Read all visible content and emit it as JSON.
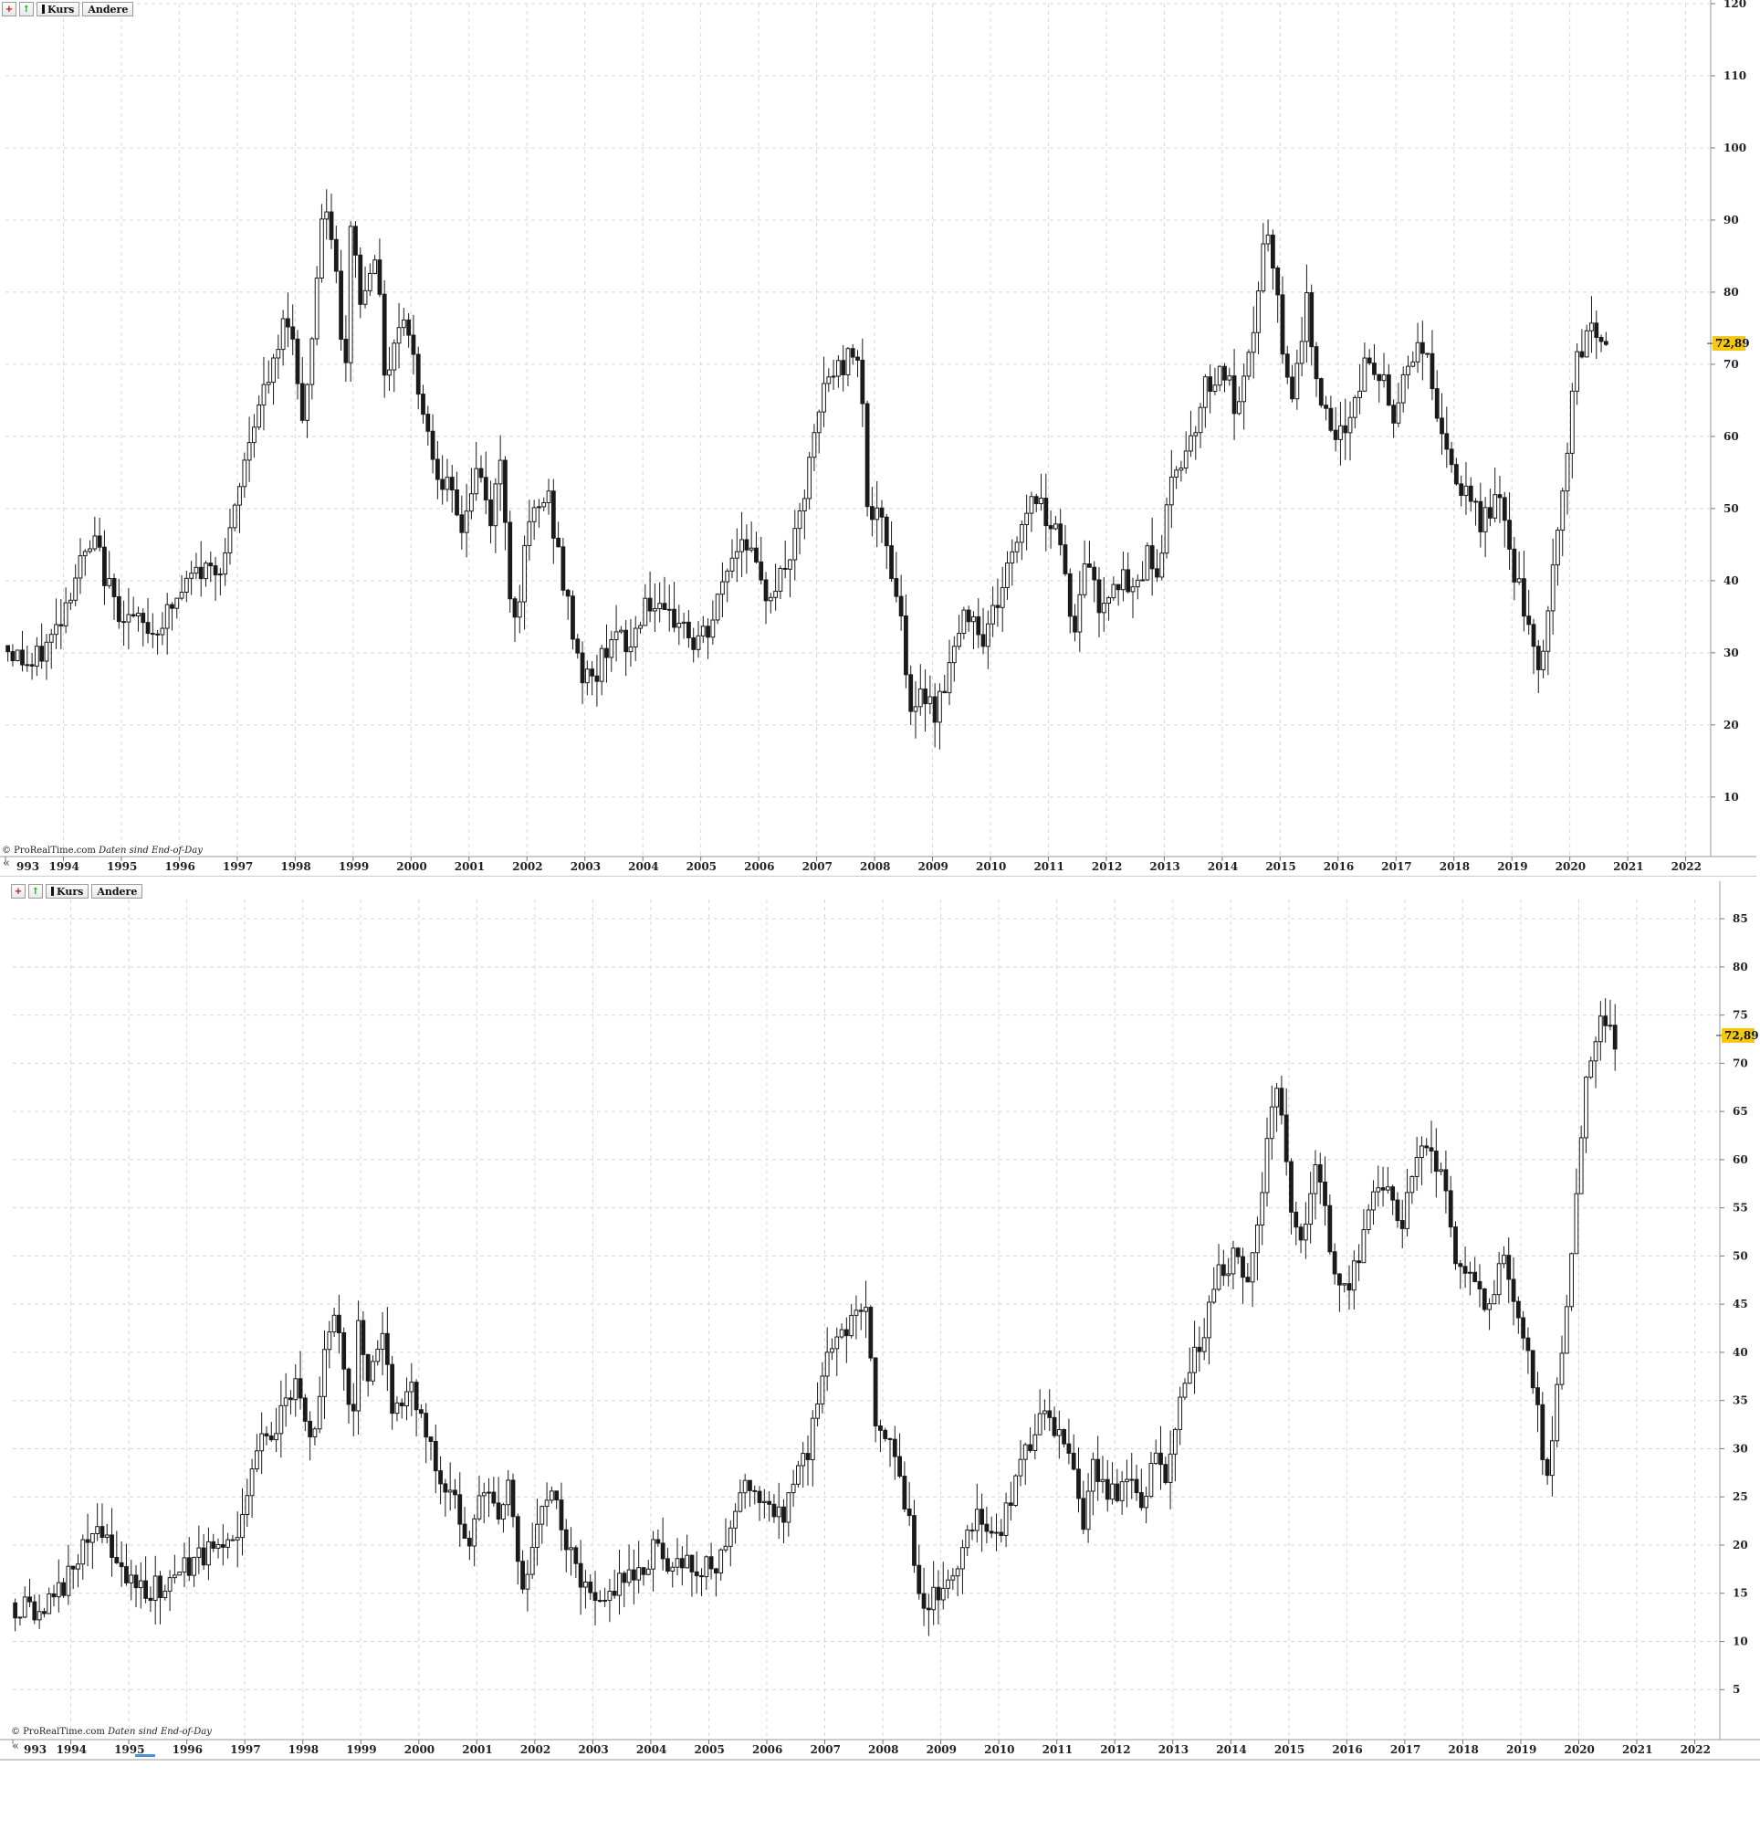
{
  "toolbar": {
    "kurs_label": "Kurs",
    "andere_label": "Andere",
    "add_icon": "plus-icon",
    "up_icon": "arrow-up-icon"
  },
  "attribution": {
    "source": "© ProRealTime.com",
    "note": "Daten sind End-of-Day"
  },
  "nav": {
    "back_label": "«"
  },
  "colors": {
    "up_candle": "#ffffff",
    "down_candle": "#1a1a1a",
    "grid": "#d8d8d8",
    "price_tag": "#f4c80f"
  },
  "chart_data": [
    {
      "type": "candlestick",
      "title": "",
      "xlabel": "",
      "ylabel": "",
      "x_ticks": [
        "993",
        "1994",
        "1995",
        "1996",
        "1997",
        "1998",
        "1999",
        "2000",
        "2001",
        "2002",
        "2003",
        "2004",
        "2005",
        "2006",
        "2007",
        "2008",
        "2009",
        "2010",
        "2011",
        "2012",
        "2013",
        "2014",
        "2015",
        "2016",
        "2017",
        "2018",
        "2019",
        "2020",
        "2021",
        "2022"
      ],
      "y_ticks": [
        10,
        20,
        30,
        40,
        50,
        60,
        70,
        80,
        90,
        100,
        110,
        120
      ],
      "ylim": [
        2,
        120
      ],
      "xlim": [
        1993.0,
        2022.4
      ],
      "grid": true,
      "current_price": 72.89,
      "current_price_label": "72,89",
      "close_path": [
        [
          1993.0,
          31
        ],
        [
          1993.5,
          28
        ],
        [
          1993.9,
          33
        ],
        [
          1994.3,
          42
        ],
        [
          1994.6,
          45
        ],
        [
          1994.9,
          37
        ],
        [
          1995.3,
          34
        ],
        [
          1995.6,
          33
        ],
        [
          1995.9,
          36
        ],
        [
          1996.3,
          41
        ],
        [
          1996.7,
          42
        ],
        [
          1996.9,
          45
        ],
        [
          1997.3,
          62
        ],
        [
          1997.7,
          70
        ],
        [
          1997.9,
          78
        ],
        [
          1998.2,
          62
        ],
        [
          1998.5,
          90
        ],
        [
          1998.7,
          88
        ],
        [
          1998.9,
          65
        ],
        [
          1999.0,
          90
        ],
        [
          1999.2,
          77
        ],
        [
          1999.4,
          88
        ],
        [
          1999.6,
          68
        ],
        [
          1999.9,
          78
        ],
        [
          2000.1,
          70
        ],
        [
          2000.4,
          58
        ],
        [
          2000.7,
          52
        ],
        [
          2000.9,
          47
        ],
        [
          2001.2,
          56
        ],
        [
          2001.4,
          48
        ],
        [
          2001.6,
          57
        ],
        [
          2001.8,
          33
        ],
        [
          2002.1,
          48
        ],
        [
          2002.4,
          52
        ],
        [
          2002.7,
          38
        ],
        [
          2003.0,
          27
        ],
        [
          2003.2,
          26
        ],
        [
          2003.5,
          33
        ],
        [
          2003.8,
          30
        ],
        [
          2004.1,
          38
        ],
        [
          2004.4,
          34
        ],
        [
          2004.7,
          35
        ],
        [
          2004.9,
          31
        ],
        [
          2005.2,
          33
        ],
        [
          2005.5,
          42
        ],
        [
          2005.8,
          47
        ],
        [
          2006.1,
          38
        ],
        [
          2006.4,
          40
        ],
        [
          2006.7,
          46
        ],
        [
          2006.9,
          55
        ],
        [
          2007.2,
          68
        ],
        [
          2007.5,
          70
        ],
        [
          2007.8,
          73
        ],
        [
          2007.9,
          50
        ],
        [
          2008.2,
          47
        ],
        [
          2008.5,
          35
        ],
        [
          2008.7,
          20
        ],
        [
          2008.9,
          25
        ],
        [
          2009.1,
          22
        ],
        [
          2009.4,
          30
        ],
        [
          2009.7,
          37
        ],
        [
          2009.9,
          32
        ],
        [
          2010.2,
          38
        ],
        [
          2010.5,
          46
        ],
        [
          2010.8,
          53
        ],
        [
          2010.9,
          50
        ],
        [
          2011.2,
          48
        ],
        [
          2011.5,
          32
        ],
        [
          2011.7,
          45
        ],
        [
          2011.9,
          36
        ],
        [
          2012.2,
          41
        ],
        [
          2012.5,
          38
        ],
        [
          2012.8,
          45
        ],
        [
          2012.9,
          40
        ],
        [
          2013.2,
          55
        ],
        [
          2013.5,
          60
        ],
        [
          2013.8,
          68
        ],
        [
          2014.1,
          69
        ],
        [
          2014.3,
          62
        ],
        [
          2014.5,
          70
        ],
        [
          2014.8,
          89
        ],
        [
          2014.9,
          84
        ],
        [
          2015.2,
          65
        ],
        [
          2015.5,
          78
        ],
        [
          2015.8,
          63
        ],
        [
          2016.0,
          58
        ],
        [
          2016.2,
          62
        ],
        [
          2016.5,
          70
        ],
        [
          2016.8,
          68
        ],
        [
          2017.0,
          62
        ],
        [
          2017.2,
          70
        ],
        [
          2017.5,
          73
        ],
        [
          2017.8,
          62
        ],
        [
          2017.9,
          57
        ],
        [
          2018.2,
          52
        ],
        [
          2018.5,
          48
        ],
        [
          2018.8,
          52
        ],
        [
          2018.9,
          47
        ],
        [
          2019.2,
          38
        ],
        [
          2019.4,
          30
        ],
        [
          2019.5,
          26
        ],
        [
          2019.7,
          38
        ],
        [
          2019.9,
          50
        ],
        [
          2020.1,
          68
        ],
        [
          2020.4,
          76
        ],
        [
          2020.6,
          72.89
        ]
      ]
    },
    {
      "type": "candlestick",
      "title": "",
      "xlabel": "",
      "ylabel": "",
      "x_ticks": [
        "993",
        "1994",
        "1995",
        "1996",
        "1997",
        "1998",
        "1999",
        "2000",
        "2001",
        "2002",
        "2003",
        "2004",
        "2005",
        "2006",
        "2007",
        "2008",
        "2009",
        "2010",
        "2011",
        "2012",
        "2013",
        "2014",
        "2015",
        "2016",
        "2017",
        "2018",
        "2019",
        "2020",
        "2021",
        "2022"
      ],
      "y_ticks": [
        5,
        10,
        15,
        20,
        25,
        30,
        35,
        40,
        45,
        50,
        55,
        60,
        65,
        70,
        75,
        80,
        85
      ],
      "ylim": [
        0,
        87
      ],
      "xlim": [
        1993.0,
        2022.4
      ],
      "grid": true,
      "current_price": 72.89,
      "current_price_label": "72,89",
      "close_path": [
        [
          1993.0,
          14
        ],
        [
          1993.5,
          13
        ],
        [
          1993.9,
          16
        ],
        [
          1994.3,
          20
        ],
        [
          1994.6,
          21
        ],
        [
          1994.9,
          18
        ],
        [
          1995.3,
          16
        ],
        [
          1995.6,
          15
        ],
        [
          1995.9,
          17
        ],
        [
          1996.3,
          19
        ],
        [
          1996.7,
          19
        ],
        [
          1996.9,
          21
        ],
        [
          1997.3,
          30
        ],
        [
          1997.7,
          34
        ],
        [
          1997.9,
          37
        ],
        [
          1998.2,
          30
        ],
        [
          1998.5,
          43
        ],
        [
          1998.7,
          42
        ],
        [
          1998.9,
          31
        ],
        [
          1999.0,
          43
        ],
        [
          1999.2,
          37
        ],
        [
          1999.4,
          42
        ],
        [
          1999.6,
          33
        ],
        [
          1999.9,
          37
        ],
        [
          2000.1,
          33
        ],
        [
          2000.4,
          27
        ],
        [
          2000.7,
          24
        ],
        [
          2000.9,
          21
        ],
        [
          2001.2,
          27
        ],
        [
          2001.4,
          22
        ],
        [
          2001.6,
          27
        ],
        [
          2001.8,
          15
        ],
        [
          2002.1,
          23
        ],
        [
          2002.4,
          25
        ],
        [
          2002.7,
          18
        ],
        [
          2003.0,
          14
        ],
        [
          2003.2,
          13
        ],
        [
          2003.5,
          17
        ],
        [
          2003.8,
          16
        ],
        [
          2004.1,
          20
        ],
        [
          2004.4,
          18
        ],
        [
          2004.7,
          19
        ],
        [
          2004.9,
          17
        ],
        [
          2005.2,
          18
        ],
        [
          2005.5,
          24
        ],
        [
          2005.8,
          27
        ],
        [
          2006.1,
          23
        ],
        [
          2006.4,
          24
        ],
        [
          2006.7,
          29
        ],
        [
          2006.9,
          34
        ],
        [
          2007.2,
          42
        ],
        [
          2007.5,
          43
        ],
        [
          2007.8,
          45
        ],
        [
          2007.9,
          32
        ],
        [
          2008.2,
          30
        ],
        [
          2008.5,
          23
        ],
        [
          2008.7,
          12
        ],
        [
          2008.9,
          16
        ],
        [
          2009.1,
          14
        ],
        [
          2009.4,
          19
        ],
        [
          2009.7,
          23
        ],
        [
          2009.9,
          20
        ],
        [
          2010.2,
          24
        ],
        [
          2010.5,
          29
        ],
        [
          2010.8,
          33
        ],
        [
          2010.9,
          32
        ],
        [
          2011.2,
          31
        ],
        [
          2011.5,
          21
        ],
        [
          2011.7,
          29
        ],
        [
          2011.9,
          24
        ],
        [
          2012.2,
          27
        ],
        [
          2012.5,
          25
        ],
        [
          2012.8,
          29
        ],
        [
          2012.9,
          27
        ],
        [
          2013.2,
          37
        ],
        [
          2013.5,
          41
        ],
        [
          2013.8,
          48
        ],
        [
          2014.1,
          50
        ],
        [
          2014.3,
          47
        ],
        [
          2014.5,
          52
        ],
        [
          2014.8,
          68
        ],
        [
          2014.9,
          64
        ],
        [
          2015.2,
          50
        ],
        [
          2015.5,
          60
        ],
        [
          2015.8,
          49
        ],
        [
          2016.0,
          46
        ],
        [
          2016.2,
          49
        ],
        [
          2016.5,
          57
        ],
        [
          2016.8,
          56
        ],
        [
          2017.0,
          52
        ],
        [
          2017.2,
          60
        ],
        [
          2017.5,
          62
        ],
        [
          2017.8,
          54
        ],
        [
          2017.9,
          50
        ],
        [
          2018.2,
          48
        ],
        [
          2018.5,
          45
        ],
        [
          2018.8,
          50
        ],
        [
          2018.9,
          45
        ],
        [
          2019.2,
          40
        ],
        [
          2019.4,
          30
        ],
        [
          2019.5,
          27
        ],
        [
          2019.7,
          38
        ],
        [
          2019.9,
          48
        ],
        [
          2020.1,
          65
        ],
        [
          2020.4,
          76
        ],
        [
          2020.6,
          72.89
        ]
      ]
    }
  ]
}
